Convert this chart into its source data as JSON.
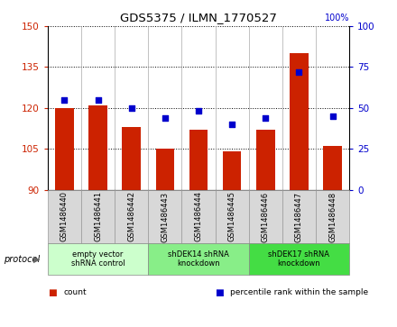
{
  "title": "GDS5375 / ILMN_1770527",
  "samples": [
    "GSM1486440",
    "GSM1486441",
    "GSM1486442",
    "GSM1486443",
    "GSM1486444",
    "GSM1486445",
    "GSM1486446",
    "GSM1486447",
    "GSM1486448"
  ],
  "counts": [
    120,
    121,
    113,
    105,
    112,
    104,
    112,
    140,
    106
  ],
  "percentiles": [
    55,
    55,
    50,
    44,
    48,
    40,
    44,
    72,
    45
  ],
  "ylim_left": [
    90,
    150
  ],
  "ylim_right": [
    0,
    100
  ],
  "yticks_left": [
    90,
    105,
    120,
    135,
    150
  ],
  "yticks_right": [
    0,
    25,
    50,
    75,
    100
  ],
  "groups": [
    {
      "label": "empty vector\nshRNA control",
      "start": 0,
      "end": 3,
      "color": "#ccffcc"
    },
    {
      "label": "shDEK14 shRNA\nknockdown",
      "start": 3,
      "end": 6,
      "color": "#88ee88"
    },
    {
      "label": "shDEK17 shRNA\nknockdown",
      "start": 6,
      "end": 9,
      "color": "#44dd44"
    }
  ],
  "bar_color": "#cc2200",
  "scatter_color": "#0000cc",
  "bar_width": 0.55,
  "background_color": "#ffffff",
  "plot_bg": "#ffffff",
  "tick_bg": "#d8d8d8",
  "left_axis_color": "#cc2200",
  "right_axis_color": "#0000cc",
  "protocol_label": "protocol",
  "legend_items": [
    {
      "label": "count",
      "color": "#cc2200"
    },
    {
      "label": "percentile rank within the sample",
      "color": "#0000cc"
    }
  ]
}
